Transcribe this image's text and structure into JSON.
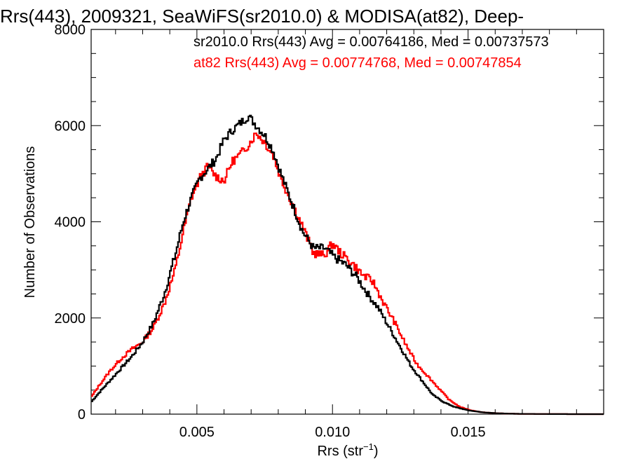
{
  "chart_data": {
    "type": "line",
    "title": "Rrs(443), 2009321, SeaWiFS(sr2010.0) & MODISA(at82), Deep-",
    "xlabel_main": "Rrs (str",
    "xlabel_sup": "−1",
    "xlabel_end": ")",
    "ylabel": "Number of Observations",
    "xlim": [
      0.0011,
      0.02
    ],
    "ylim": [
      0,
      8000
    ],
    "x_ticks": [
      0.005,
      0.01,
      0.015
    ],
    "x_tick_labels": [
      "0.005",
      "0.010",
      "0.015"
    ],
    "y_ticks": [
      0,
      2000,
      4000,
      6000,
      8000
    ],
    "y_tick_labels": [
      "0",
      "2000",
      "4000",
      "6000",
      "8000"
    ],
    "legend": [
      {
        "text": "sr2010.0 Rrs(443) Avg = 0.00764186, Med = 0.00737573",
        "color": "#000000"
      },
      {
        "text": "at82 Rrs(443) Avg = 0.00774768, Med = 0.00747854",
        "color": "#ff0000"
      }
    ],
    "series": [
      {
        "name": "sr2010.0",
        "color": "#000000",
        "x": [
          0.0011,
          0.0014,
          0.0018,
          0.0022,
          0.0026,
          0.003,
          0.0034,
          0.0038,
          0.0042,
          0.0045,
          0.0048,
          0.0051,
          0.0054,
          0.0057,
          0.006,
          0.0063,
          0.0066,
          0.0069,
          0.0072,
          0.0075,
          0.0078,
          0.0081,
          0.0085,
          0.0089,
          0.0093,
          0.0097,
          0.0101,
          0.0105,
          0.0109,
          0.0113,
          0.0117,
          0.0121,
          0.0125,
          0.0129,
          0.0133,
          0.0137,
          0.0141,
          0.0145,
          0.015,
          0.0155,
          0.016,
          0.0165,
          0.017,
          0.018,
          0.019,
          0.02
        ],
        "y": [
          250,
          450,
          700,
          950,
          1200,
          1500,
          1900,
          2500,
          3300,
          4000,
          4500,
          4900,
          5100,
          5300,
          5700,
          5900,
          6050,
          6200,
          6000,
          5800,
          5500,
          5000,
          4400,
          3800,
          3450,
          3450,
          3250,
          3100,
          2850,
          2500,
          2200,
          1800,
          1400,
          1000,
          700,
          400,
          250,
          150,
          80,
          40,
          20,
          10,
          5,
          2,
          0,
          0
        ]
      },
      {
        "name": "at82",
        "color": "#ff0000",
        "x": [
          0.0011,
          0.0014,
          0.0018,
          0.0022,
          0.0026,
          0.003,
          0.0034,
          0.0038,
          0.0042,
          0.0045,
          0.0048,
          0.0051,
          0.0054,
          0.0057,
          0.006,
          0.0063,
          0.0066,
          0.0069,
          0.0072,
          0.0075,
          0.0078,
          0.0081,
          0.0085,
          0.0089,
          0.0093,
          0.0097,
          0.01,
          0.0103,
          0.0107,
          0.0111,
          0.0115,
          0.0119,
          0.0123,
          0.0127,
          0.0131,
          0.0135,
          0.0139,
          0.0143,
          0.0147,
          0.0151,
          0.0155,
          0.016,
          0.0165,
          0.017,
          0.018,
          0.019,
          0.02
        ],
        "y": [
          350,
          600,
          900,
          1150,
          1350,
          1500,
          1800,
          2300,
          3000,
          3800,
          4500,
          4900,
          5150,
          4950,
          4850,
          5250,
          5400,
          5600,
          5850,
          5650,
          5400,
          4900,
          4400,
          3900,
          3350,
          3300,
          3550,
          3350,
          3150,
          2900,
          2750,
          2300,
          1900,
          1450,
          1050,
          800,
          550,
          300,
          150,
          80,
          40,
          20,
          10,
          5,
          2,
          0,
          0
        ]
      }
    ]
  }
}
